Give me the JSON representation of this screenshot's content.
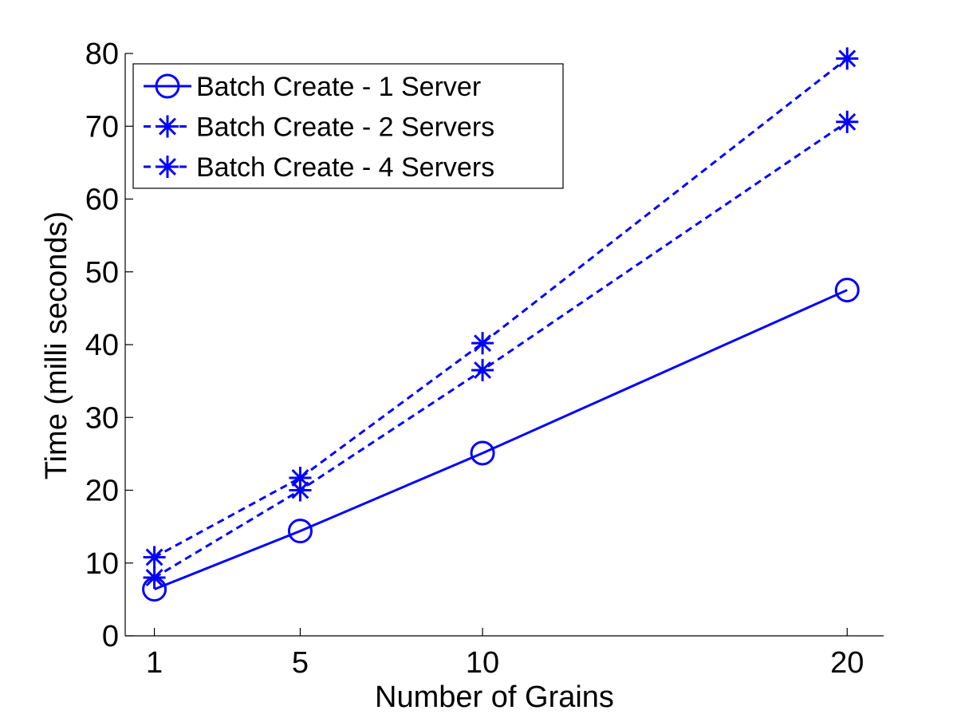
{
  "chart_data": {
    "type": "line",
    "title": "",
    "xlabel": "Number of Grains",
    "ylabel": "Time (milli seconds)",
    "x": [
      1,
      5,
      10,
      20
    ],
    "xticks": [
      "1",
      "5",
      "10",
      "20"
    ],
    "xlim": [
      0.2,
      21
    ],
    "ylim": [
      0,
      80
    ],
    "yticks": [
      "0",
      "10",
      "20",
      "30",
      "40",
      "50",
      "60",
      "70",
      "80"
    ],
    "grid": false,
    "legend_position": "top-left",
    "series": [
      {
        "name": "Batch Create - 1 Server",
        "values": [
          6.4,
          14.4,
          25.1,
          47.5
        ],
        "marker": "circle",
        "linestyle": "solid",
        "color": "#0000ff"
      },
      {
        "name": "Batch Create - 2 Servers",
        "values": [
          8.0,
          20.0,
          36.5,
          70.6
        ],
        "marker": "asterisk",
        "linestyle": "dashed",
        "color": "#0000ff"
      },
      {
        "name": "Batch Create - 4 Servers",
        "values": [
          10.8,
          21.7,
          40.2,
          79.3
        ],
        "marker": "asterisk",
        "linestyle": "dashed",
        "color": "#0000ff"
      }
    ]
  }
}
